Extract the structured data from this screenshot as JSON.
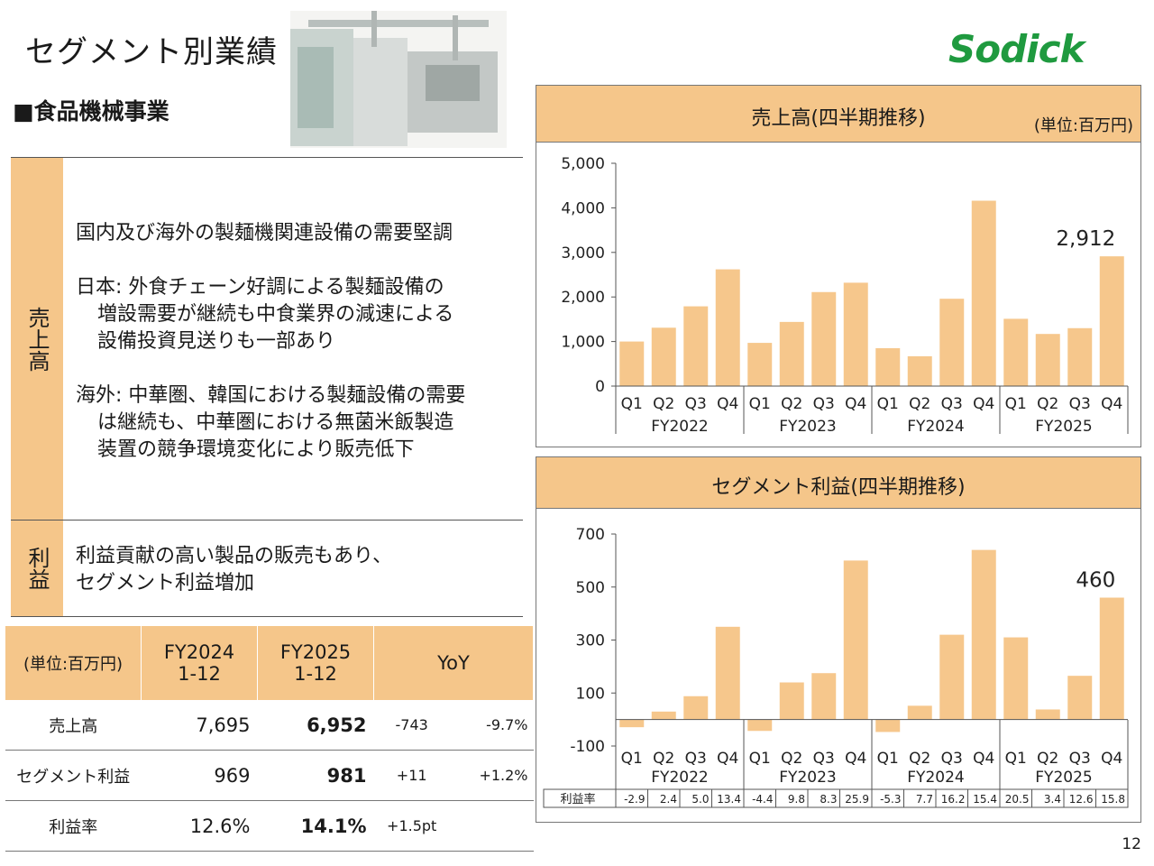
{
  "header": {
    "title": "セグメント別業績",
    "logo": "Sodick",
    "segment": "■食品機械事業"
  },
  "sections": {
    "sales": {
      "label": "売上高",
      "lines": [
        "国内及び海外の製麺機関連設備の需要堅調",
        "日本: 外食チェーン好調による製麺設備の",
        "増設需要が継続も中食業界の減速による",
        "設備投資見送りも一部あり",
        "海外: 中華圏、韓国における製麺設備の需要",
        "は継続も、中華圏における無菌米飯製造",
        "装置の競争環境変化により販売低下"
      ]
    },
    "profit": {
      "label": "利益",
      "lines": [
        "利益貢献の高い製品の販売もあり、",
        "セグメント利益増加"
      ]
    }
  },
  "summary_table": {
    "headers": [
      "(単位:百万円)",
      "FY2024\n1-12",
      "FY2025\n1-12",
      "YoY"
    ],
    "rows": [
      {
        "label": "売上高",
        "fy2024": "7,695",
        "fy2025": "6,952",
        "yoy_abs": "-743",
        "yoy_pct": "-9.7%"
      },
      {
        "label": "セグメント利益",
        "fy2024": "969",
        "fy2025": "981",
        "yoy_abs": "+11",
        "yoy_pct": "+1.2%"
      },
      {
        "label": "利益率",
        "fy2024": "12.6%",
        "fy2025": "14.1%",
        "yoy_abs": "+1.5pt",
        "yoy_pct": ""
      }
    ]
  },
  "page_number": "12",
  "colors": {
    "accent": "#f5c68a",
    "bar": "#f6c78c",
    "logo": "#1f9a3f"
  },
  "chart_data": [
    {
      "type": "bar",
      "title": "売上高(四半期推移)",
      "unit_note": "(単位:百万円)",
      "groups": [
        "FY2022",
        "FY2023",
        "FY2024",
        "FY2025"
      ],
      "categories": [
        "Q1",
        "Q2",
        "Q3",
        "Q4",
        "Q1",
        "Q2",
        "Q3",
        "Q4",
        "Q1",
        "Q2",
        "Q3",
        "Q4",
        "Q1",
        "Q2",
        "Q3",
        "Q4"
      ],
      "values": [
        1000,
        1310,
        1790,
        2620,
        970,
        1440,
        2110,
        2320,
        850,
        670,
        1960,
        4160,
        1510,
        1170,
        1300,
        2912
      ],
      "ylim": [
        0,
        5000
      ],
      "yticks": [
        "0",
        "1,000",
        "2,000",
        "3,000",
        "4,000",
        "5,000"
      ],
      "yticks_values": [
        0,
        1000,
        2000,
        3000,
        4000,
        5000
      ],
      "annotation": "2,912"
    },
    {
      "type": "bar",
      "title": "セグメント利益(四半期推移)",
      "groups": [
        "FY2022",
        "FY2023",
        "FY2024",
        "FY2025"
      ],
      "categories": [
        "Q1",
        "Q2",
        "Q3",
        "Q4",
        "Q1",
        "Q2",
        "Q3",
        "Q4",
        "Q1",
        "Q2",
        "Q3",
        "Q4",
        "Q1",
        "Q2",
        "Q3",
        "Q4"
      ],
      "values": [
        -29,
        30,
        88,
        350,
        -43,
        140,
        175,
        600,
        -47,
        52,
        320,
        640,
        310,
        38,
        165,
        460
      ],
      "ylim": [
        -100,
        700
      ],
      "yticks": [
        "-100",
        "100",
        "300",
        "500",
        "700"
      ],
      "yticks_values": [
        -100,
        100,
        300,
        500,
        700
      ],
      "annotation": "460",
      "margin_label": "利益率",
      "margins": [
        "-2.9",
        "2.4",
        "5.0",
        "13.4",
        "-4.4",
        "9.8",
        "8.3",
        "25.9",
        "-5.3",
        "7.7",
        "16.2",
        "15.4",
        "20.5",
        "3.4",
        "12.6",
        "15.8"
      ]
    }
  ]
}
